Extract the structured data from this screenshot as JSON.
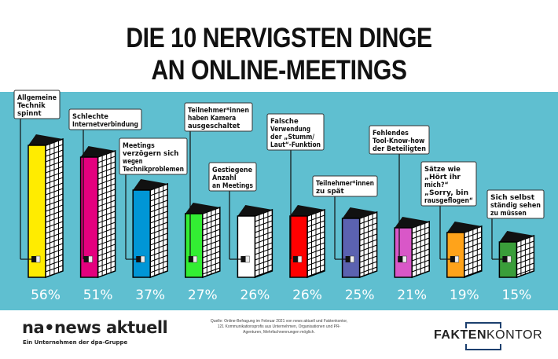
{
  "title_lines": [
    "DIE 10 NERVIGSTEN DINGE",
    "AN ONLINE-MEETINGS"
  ],
  "chart_data": {
    "type": "bar",
    "style": "3d-building-bars",
    "background_color": "#5fbfd0",
    "categories": [
      [
        "Allgemeine",
        "Technik",
        "spinnt"
      ],
      [
        "Schlechte",
        "Internetverbindung"
      ],
      [
        "Meetings",
        "verzögern sich",
        "wegen",
        "Technikproblemen"
      ],
      [
        "Teilnehmer*innen",
        "haben Kamera",
        "ausgeschaltet"
      ],
      [
        "Gestiegene",
        "Anzahl",
        "an Meetings"
      ],
      [
        "Falsche",
        "Verwendung",
        "der „Stumm/",
        "Laut“-Funktion"
      ],
      [
        "Teilnehmer*innen",
        "zu spät"
      ],
      [
        "Fehlendes",
        "Tool-Know-how",
        "der Beteiligten"
      ],
      [
        "Sätze wie",
        "„Hört ihr",
        "mich?“",
        "„Sorry, bin",
        "rausgeflogen“"
      ],
      [
        "Sich selbst",
        "ständig sehen",
        "zu müssen"
      ]
    ],
    "values": [
      56,
      51,
      37,
      27,
      26,
      26,
      25,
      21,
      19,
      15
    ],
    "value_labels": [
      "56%",
      "51%",
      "37%",
      "27%",
      "26%",
      "26%",
      "25%",
      "21%",
      "19%",
      "15%"
    ],
    "unit": "%",
    "colors": [
      "#ffec00",
      "#e5007e",
      "#0096d6",
      "#33ee33",
      "#ffffff",
      "#ff0000",
      "#5b62b0",
      "#d957c8",
      "#ffa31a",
      "#3a9e3a"
    ]
  },
  "footer": {
    "logo_left": "na•news aktuell",
    "logo_left_sub": "Ein Unternehmen der dpa-Gruppe",
    "source": "Quelle: Online-Befragung im Februar 2021 von news aktuell und Faktenkontor, 121 Kommunikationsprofis aus Unternehmen, Organisationen und PR-Agenturen, Mehrfachnennungen möglich.",
    "logo_right_bold": "FAKTEN",
    "logo_right_light": "KONTOR"
  }
}
